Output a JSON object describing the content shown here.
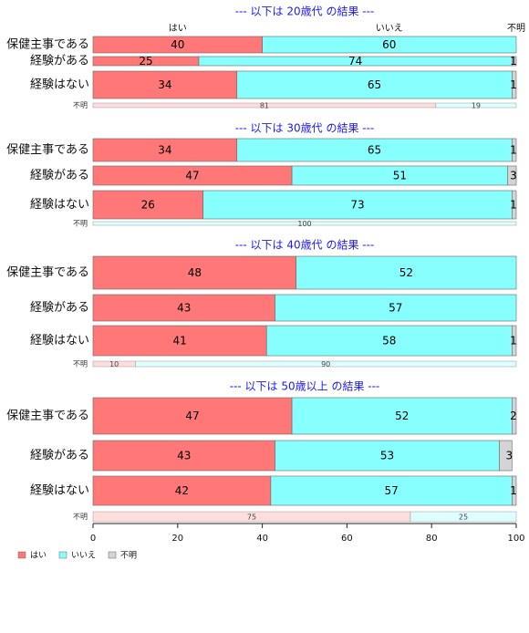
{
  "chart_data": {
    "type": "bar",
    "stacked": true,
    "orientation": "horizontal",
    "xlim": [
      0,
      100
    ],
    "xticks": [
      0,
      20,
      40,
      60,
      80,
      100
    ],
    "grid": false,
    "legend_position": "bottom-left",
    "column_headers": [
      "はい",
      "いいえ",
      "不明"
    ],
    "categories_legend": [
      {
        "label": "はい",
        "color": "#ff7777"
      },
      {
        "label": "いいえ",
        "color": "#88ffff"
      },
      {
        "label": "不明",
        "color": "#d4d4d4"
      }
    ],
    "panels": [
      {
        "title": "--- 以下は 20歳代 の結果 ---",
        "rows": [
          {
            "label": "保健主事である",
            "values": [
              40,
              60,
              0
            ]
          },
          {
            "label": "経験がある",
            "values": [
              25,
              74,
              1
            ]
          },
          {
            "label": "経験はない",
            "values": [
              34,
              65,
              1
            ]
          }
        ],
        "unknown": {
          "label": "不明",
          "values": [
            81,
            19
          ]
        }
      },
      {
        "title": "--- 以下は 30歳代 の結果 ---",
        "rows": [
          {
            "label": "保健主事である",
            "values": [
              34,
              65,
              1
            ]
          },
          {
            "label": "経験がある",
            "values": [
              47,
              51,
              3
            ]
          },
          {
            "label": "経験はない",
            "values": [
              26,
              73,
              1
            ]
          }
        ],
        "unknown": {
          "label": "不明",
          "values": [
            0,
            100
          ]
        }
      },
      {
        "title": "--- 以下は 40歳代 の結果 ---",
        "rows": [
          {
            "label": "保健主事である",
            "values": [
              48,
              52,
              0
            ]
          },
          {
            "label": "経験がある",
            "values": [
              43,
              57,
              0
            ]
          },
          {
            "label": "経験はない",
            "values": [
              41,
              58,
              1
            ]
          }
        ],
        "unknown": {
          "label": "不明",
          "values": [
            10,
            90
          ]
        }
      },
      {
        "title": "--- 以下は 50歳以上 の結果 ---",
        "rows": [
          {
            "label": "保健主事である",
            "values": [
              47,
              52,
              2
            ]
          },
          {
            "label": "経験がある",
            "values": [
              43,
              53,
              3
            ]
          },
          {
            "label": "経験はない",
            "values": [
              42,
              57,
              1
            ]
          }
        ],
        "unknown": {
          "label": "不明",
          "values": [
            75,
            25
          ]
        }
      }
    ]
  },
  "colors": {
    "yes": "#ff7777",
    "no": "#88ffff",
    "unknown": "#d4d4d4",
    "yes_light": "#ffdddd",
    "no_light": "#ddffff",
    "title": "#1a1aff"
  }
}
